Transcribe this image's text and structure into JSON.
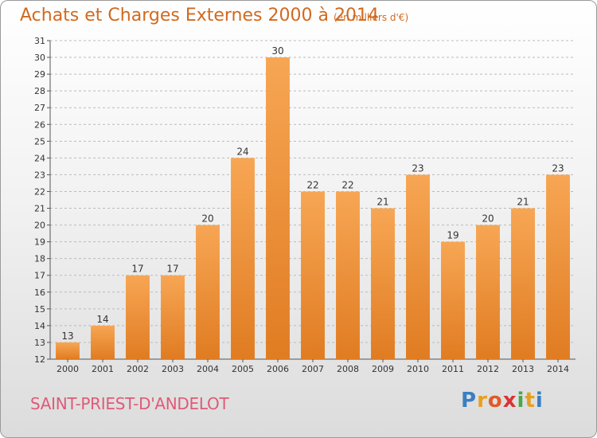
{
  "header": {
    "title": "Achats et Charges Externes 2000 à 2014",
    "subtitle": "(en milliers d'€)"
  },
  "footer": {
    "commune": "SAINT-PRIEST-D'ANDELOT",
    "logo": {
      "letters": [
        "P",
        "r",
        "o",
        "x",
        "i",
        "t",
        "i"
      ],
      "colors": [
        "#3a7fc1",
        "#e8a020",
        "#e05a28",
        "#d93434",
        "#4aa84a",
        "#e8a020",
        "#3a7fc1"
      ]
    }
  },
  "chart_data": {
    "type": "bar",
    "categories": [
      "2000",
      "2001",
      "2002",
      "2003",
      "2004",
      "2005",
      "2006",
      "2007",
      "2008",
      "2009",
      "2010",
      "2011",
      "2012",
      "2013",
      "2014"
    ],
    "values": [
      13,
      14,
      17,
      17,
      20,
      24,
      30,
      22,
      22,
      21,
      23,
      19,
      20,
      21,
      23
    ],
    "data_labels": [
      "13",
      "14",
      "17",
      "17",
      "20",
      "24",
      "30",
      "22",
      "22",
      "21",
      "23",
      "19",
      "20",
      "21",
      "23"
    ],
    "ylim": [
      12,
      31
    ],
    "yticks": [
      "12",
      "13",
      "14",
      "15",
      "16",
      "17",
      "18",
      "19",
      "20",
      "21",
      "22",
      "23",
      "24",
      "25",
      "26",
      "27",
      "28",
      "29",
      "30",
      "31"
    ],
    "grid": true,
    "colors": {
      "bar_light": "#f7a654",
      "bar_dark": "#e07c22",
      "grid": "#bbbbbb"
    }
  }
}
